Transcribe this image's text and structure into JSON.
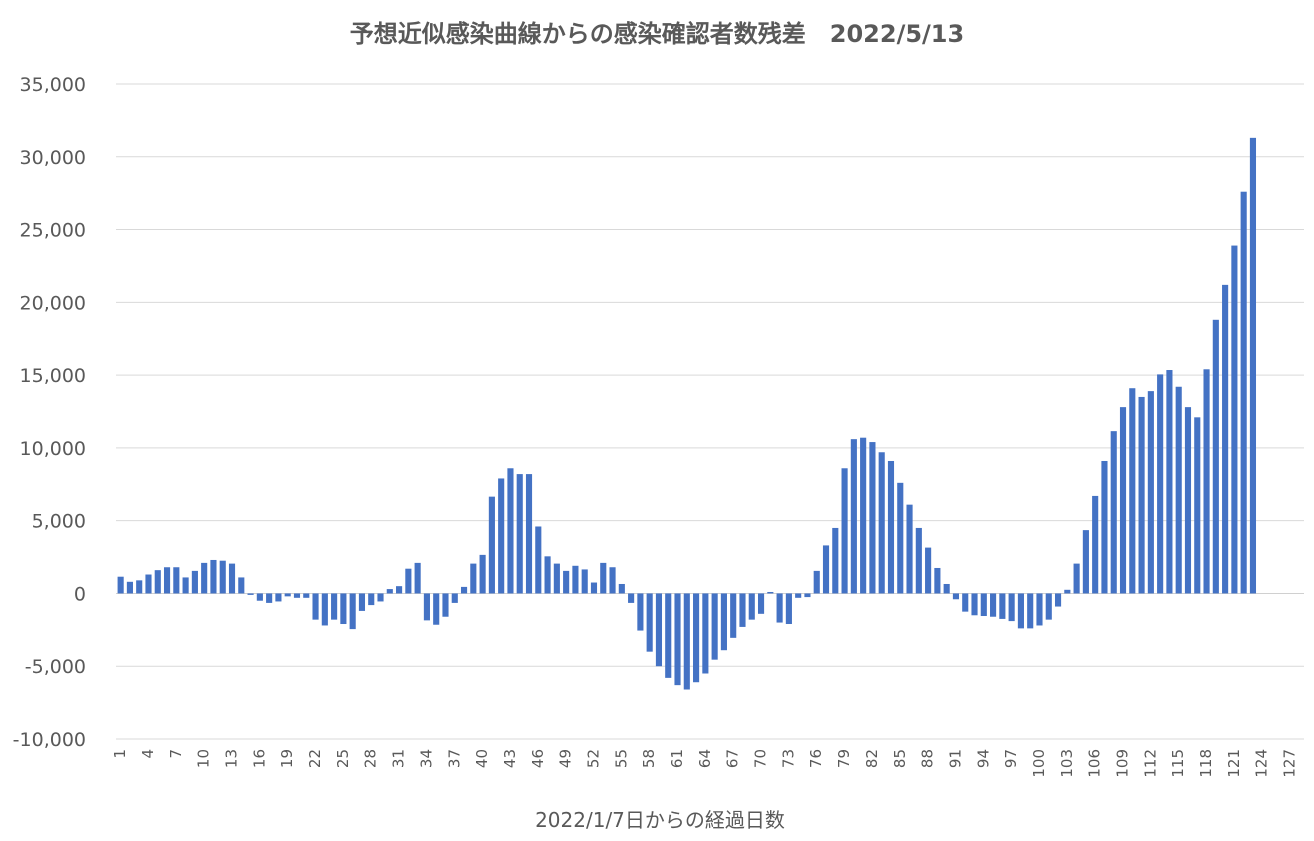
{
  "chart_data": {
    "type": "bar",
    "title": "予想近似感染曲線からの感染確認者数残差　2022/5/13",
    "xlabel": "2022/1/7日からの経過日数",
    "ylabel": "",
    "ylim": [
      -10000,
      35000
    ],
    "ytick_step": 5000,
    "ytick_labels": [
      "-10,000",
      "-5,000",
      "0",
      "5,000",
      "10,000",
      "15,000",
      "20,000",
      "25,000",
      "30,000",
      "35,000"
    ],
    "x_range": [
      1,
      128
    ],
    "xtick_labels": [
      "1",
      "4",
      "7",
      "10",
      "13",
      "16",
      "19",
      "22",
      "25",
      "28",
      "31",
      "34",
      "37",
      "40",
      "43",
      "46",
      "49",
      "52",
      "55",
      "58",
      "61",
      "64",
      "67",
      "70",
      "73",
      "76",
      "79",
      "82",
      "85",
      "88",
      "91",
      "94",
      "97",
      "100",
      "103",
      "106",
      "109",
      "112",
      "115",
      "118",
      "121",
      "124",
      "127"
    ],
    "grid": true,
    "bar_color": "#4472C4",
    "values": [
      1150,
      800,
      900,
      1300,
      1600,
      1800,
      1800,
      1100,
      1550,
      2100,
      2300,
      2250,
      2050,
      1100,
      -100,
      -500,
      -650,
      -550,
      -200,
      -300,
      -300,
      -1800,
      -2200,
      -1800,
      -2100,
      -2450,
      -1200,
      -800,
      -550,
      300,
      500,
      1700,
      2100,
      -1850,
      -2150,
      -1600,
      -650,
      450,
      2050,
      2650,
      6650,
      7900,
      8600,
      8200,
      8200,
      4600,
      2550,
      2050,
      1550,
      1900,
      1650,
      750,
      2100,
      1800,
      650,
      -650,
      -2550,
      -4000,
      -5000,
      -5800,
      -6300,
      -6600,
      -6100,
      -5500,
      -4550,
      -3900,
      -3050,
      -2300,
      -1800,
      -1400,
      100,
      -2000,
      -2100,
      -300,
      -250,
      1550,
      3300,
      4500,
      8600,
      10600,
      10700,
      10400,
      9700,
      9100,
      7600,
      6100,
      4500,
      3150,
      1750,
      650,
      -400,
      -1250,
      -1500,
      -1550,
      -1600,
      -1750,
      -1900,
      -2400,
      -2400,
      -2200,
      -1800,
      -900,
      250,
      2050,
      4350,
      6700,
      9100,
      11150,
      12800,
      14100,
      13500,
      13900,
      15050,
      15350,
      14200,
      12800,
      12100,
      15400,
      18800,
      21200,
      23900,
      27600,
      31300
    ]
  }
}
